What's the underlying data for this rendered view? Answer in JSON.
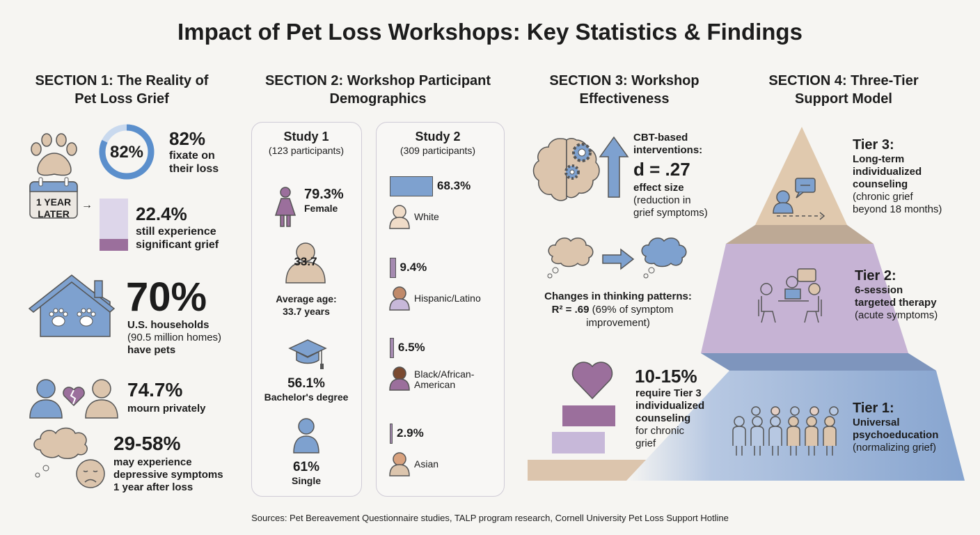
{
  "title": "Impact of Pet Loss Workshops: Key Statistics & Findings",
  "colors": {
    "blue": "#7ea1cf",
    "beige": "#dcc5ad",
    "purple": "#9b6f9c",
    "lavender": "#c7b8d9",
    "background": "#f6f5f2"
  },
  "section1": {
    "heading1": "SECTION 1: The Reality of",
    "heading2": "Pet Loss Grief",
    "donut": {
      "label": "82%",
      "fraction": 0.82
    },
    "fixate": {
      "value": "82%",
      "line1": "fixate on",
      "line2": "their loss"
    },
    "calendar": {
      "line1": "1 YEAR",
      "line2": "LATER",
      "arrow": "→"
    },
    "grief_bar_fraction": 0.224,
    "grief": {
      "value": "22.4%",
      "line1": "still experience",
      "line2": "significant grief"
    },
    "households": {
      "value": "70%",
      "line1": "U.S. households",
      "line2": "(90.5 million homes)",
      "line3": "have pets"
    },
    "mourn": {
      "value": "74.7%",
      "line1": "mourn privately"
    },
    "depressive": {
      "value": "29-58%",
      "line1": "may experience",
      "line2": "depressive symptoms",
      "line3": "1 year after loss"
    }
  },
  "section2": {
    "heading1": "SECTION 2: Workshop Participant",
    "heading2": "Demographics",
    "study1": {
      "title": "Study 1",
      "subtitle": "(123 participants)",
      "female": {
        "value": "79.3%",
        "label": "Female"
      },
      "age": {
        "badge": "33.7",
        "line1": "Average age:",
        "line2": "33.7 years"
      },
      "degree": {
        "value": "56.1%",
        "label": "Bachelor's degree"
      },
      "single": {
        "value": "61%",
        "label": "Single"
      }
    },
    "study2": {
      "title": "Study 2",
      "subtitle": "(309 participants)",
      "groups": [
        {
          "value": "68.3%",
          "percent": 68.3,
          "label": "White"
        },
        {
          "value": "9.4%",
          "percent": 9.4,
          "label": "Hispanic/Latino"
        },
        {
          "value": "6.5%",
          "percent": 6.5,
          "label": "Black/African-",
          "label2": "American"
        },
        {
          "value": "2.9%",
          "percent": 2.9,
          "label": "Asian"
        }
      ]
    }
  },
  "section3": {
    "heading1": "SECTION 3: Workshop",
    "heading2": "Effectiveness",
    "cbt": {
      "line1": "CBT-based",
      "line2": "interventions:",
      "value": "d = .27",
      "line3": "effect size",
      "line4": "(reduction in",
      "line5": "grief symptoms)"
    },
    "thinking": {
      "line1": "Changes in thinking patterns:",
      "value": "R² = .69",
      "line2": "(69% of symptom",
      "line3": "improvement)"
    },
    "tier3need": {
      "value": "10-15%",
      "line1": "require Tier 3",
      "line2": "individualized",
      "line3": "counseling",
      "line4": "for chronic",
      "line5": "grief"
    }
  },
  "section4": {
    "heading1": "SECTION 4: Three-Tier",
    "heading2": "Support Model",
    "tiers": [
      {
        "name": "Tier 3:",
        "line1": "Long-term",
        "line2": "individualized",
        "line3": "counseling",
        "line4": "(chronic grief",
        "line5": "beyond 18 months)"
      },
      {
        "name": "Tier 2:",
        "line1": "6-session",
        "line2": "targeted therapy",
        "line3": "(acute symptoms)"
      },
      {
        "name": "Tier 1:",
        "line1": "Universal",
        "line2": "psychoeducation",
        "line3": "(normalizing grief)"
      }
    ]
  },
  "sources": "Sources: Pet Bereavement Questionnaire studies, TALP program research, Cornell University Pet Loss Support Hotline"
}
